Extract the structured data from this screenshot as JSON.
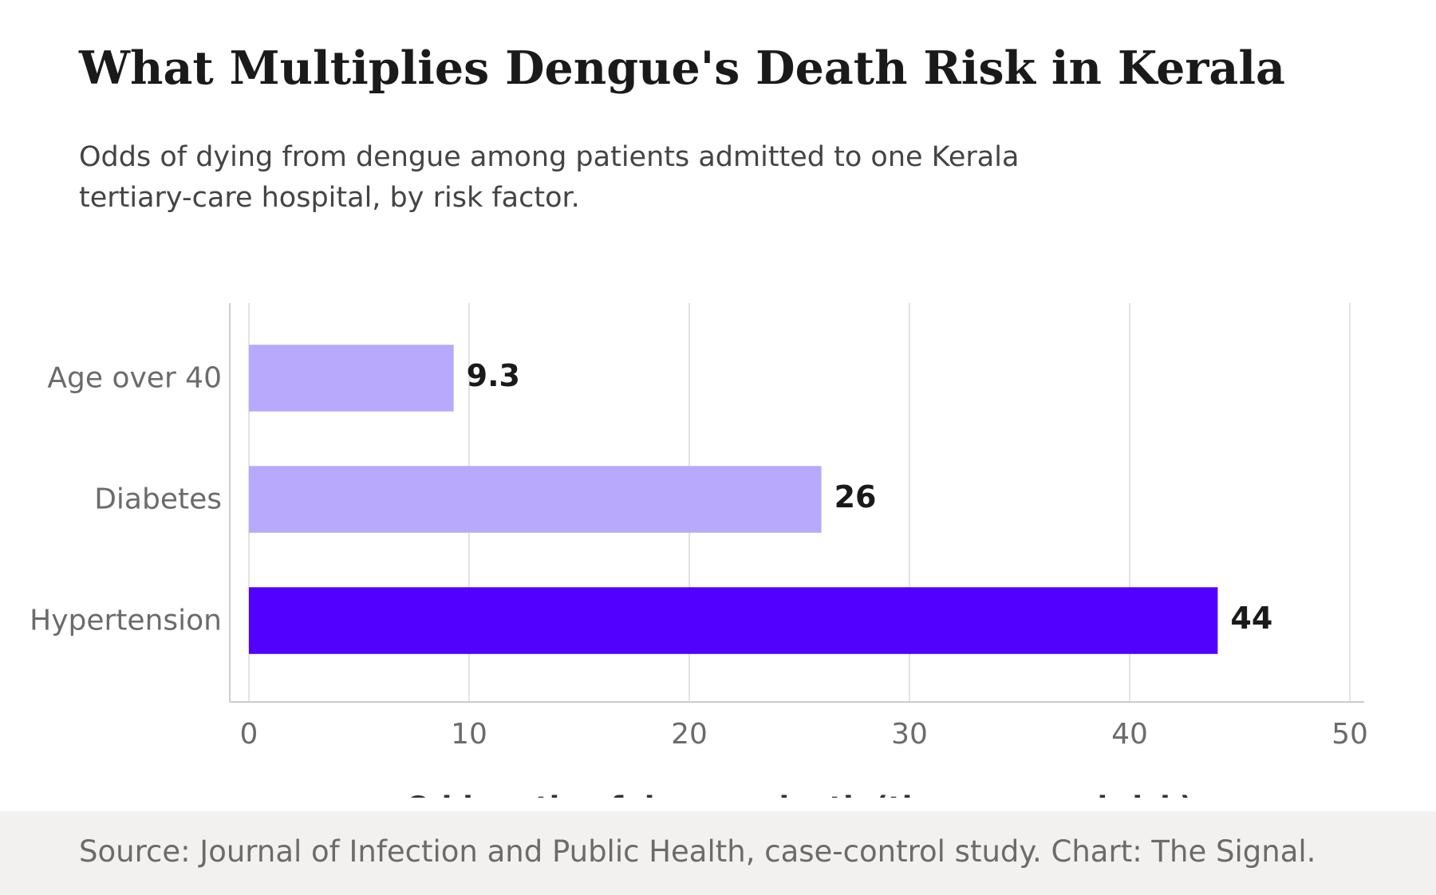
{
  "header": {
    "title": "What Multiplies Dengue's Death Risk in Kerala",
    "subtitle": "Odds of dying from dengue among patients admitted to one Kerala tertiary-care hospital, by risk factor."
  },
  "footer": {
    "source": "Source: Journal of Infection and Public Health, case-control study. Chart: The Signal."
  },
  "colors": {
    "bar_default": "#b8a9fc",
    "bar_highlight": "#5200ff",
    "grid": "#e3e3e3",
    "axis": "#cccccc",
    "tick_text": "#6b6b6b",
    "label_text": "#1a1a1a",
    "xlabel_text": "#333333"
  },
  "chart_data": {
    "type": "bar",
    "orientation": "horizontal",
    "categories": [
      "Age over 40",
      "Diabetes",
      "Hypertension"
    ],
    "values": [
      9.3,
      26,
      44
    ],
    "value_labels": [
      "9.3",
      "26",
      "44"
    ],
    "highlight": "Hypertension",
    "xlabel": "Odds ratio of dengue death (times normal risk)",
    "ylabel": "",
    "xlim": [
      0,
      50
    ],
    "xticks": [
      0,
      10,
      20,
      30,
      40,
      50
    ],
    "grid": true,
    "legend": "none"
  }
}
